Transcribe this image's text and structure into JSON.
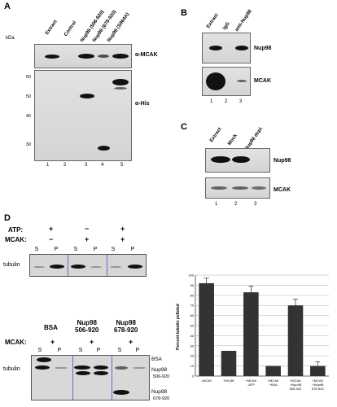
{
  "panel_a": {
    "letter": "A",
    "kda": "kDa",
    "lanes": [
      "Extract",
      "Control",
      "Nup98 (506-920)",
      "Nup98 (678-920)",
      "Nup98 (S864A)"
    ],
    "lane_numbers": [
      "1",
      "2",
      "3",
      "4",
      "5"
    ],
    "mw_markers": [
      "60",
      "50",
      "40",
      "30"
    ],
    "top_label": "α-MCAK",
    "bottom_label": "α-His"
  },
  "panel_b": {
    "letter": "B",
    "lanes": [
      "Extract",
      "IgG",
      "anti-Nup98"
    ],
    "lane_numbers": [
      "1",
      "2",
      "3"
    ],
    "top_label": "Nup98",
    "bottom_label": "MCAK"
  },
  "panel_c": {
    "letter": "C",
    "lanes": [
      "Extract",
      "Mock",
      "Nup98 depl."
    ],
    "lane_numbers": [
      "1",
      "2",
      "3"
    ],
    "top_label": "Nup98",
    "bottom_label": "MCAK"
  },
  "panel_d": {
    "letter": "D",
    "top": {
      "atp_label": "ATP:",
      "mcak_label": "MCAK:",
      "atp_signs": [
        "+",
        "−",
        "+"
      ],
      "mcak_signs": [
        "−",
        "+",
        "+"
      ],
      "sp": [
        "S",
        "P",
        "S",
        "P",
        "S",
        "P"
      ],
      "tubulin_label": "tubulin"
    },
    "bottom": {
      "group_titles": [
        "BSA",
        "Nup98\n506-920",
        "Nup98\n678-920"
      ],
      "mcak_label": "MCAK:",
      "mcak_signs": [
        "+",
        "+",
        "+"
      ],
      "sp": [
        "S",
        "P",
        "S",
        "P",
        "S",
        "P"
      ],
      "tubulin_label": "tubulin",
      "right_labels": [
        "BSA",
        "Nup98",
        "506-920",
        "Nup98",
        "678-920"
      ]
    }
  },
  "chart_data": {
    "type": "bar",
    "ylabel": "Percent tubulin pelleted",
    "ylim": [
      0,
      100
    ],
    "yticks": [
      0,
      10,
      20,
      30,
      40,
      50,
      60,
      70,
      80,
      90,
      100
    ],
    "categories": [
      "-MCAK",
      "+MCAK",
      "+MCAK -ATP",
      "+MCAK +BSA",
      "+MCAK +Nup98 506-920",
      "+MCAK +Nup98 678-920"
    ],
    "tick_lines": [
      [
        "-MCAK"
      ],
      [
        "+MCAK"
      ],
      [
        "+MCAK",
        "-ATP"
      ],
      [
        "+MCAK",
        "+BSA"
      ],
      [
        "+MCAK",
        "+Nup98",
        "506-920"
      ],
      [
        "+MCAK",
        "+Nup98",
        "678-920"
      ]
    ],
    "values": [
      92,
      25,
      83,
      10,
      70,
      10
    ],
    "errors": [
      5,
      0,
      6,
      0,
      6,
      4
    ],
    "grid": true,
    "colors": {
      "bar": "#333333"
    }
  }
}
